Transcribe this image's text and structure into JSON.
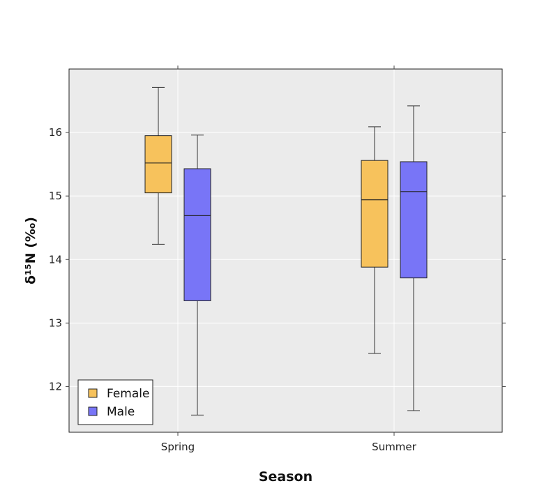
{
  "chart_data": {
    "type": "box",
    "xlabel": "Season",
    "ylabel": "δ¹⁵N (‰)",
    "categories": [
      "Spring",
      "Summer"
    ],
    "ylim": [
      11.28,
      17.0
    ],
    "yticks": [
      12,
      13,
      14,
      15,
      16
    ],
    "grid": true,
    "legend_position": "bottom-left",
    "series": [
      {
        "name": "Female",
        "color": "#f7c25c",
        "boxes": [
          {
            "category": "Spring",
            "min": 14.24,
            "q1": 15.05,
            "median": 15.52,
            "q3": 15.95,
            "max": 16.71
          },
          {
            "category": "Summer",
            "min": 12.52,
            "q1": 13.88,
            "median": 14.94,
            "q3": 15.56,
            "max": 16.09
          }
        ]
      },
      {
        "name": "Male",
        "color": "#7875f7",
        "boxes": [
          {
            "category": "Spring",
            "min": 11.55,
            "q1": 13.35,
            "median": 14.69,
            "q3": 15.43,
            "max": 15.96
          },
          {
            "category": "Summer",
            "min": 11.62,
            "q1": 13.71,
            "median": 15.07,
            "q3": 15.54,
            "max": 16.42
          }
        ]
      }
    ]
  }
}
